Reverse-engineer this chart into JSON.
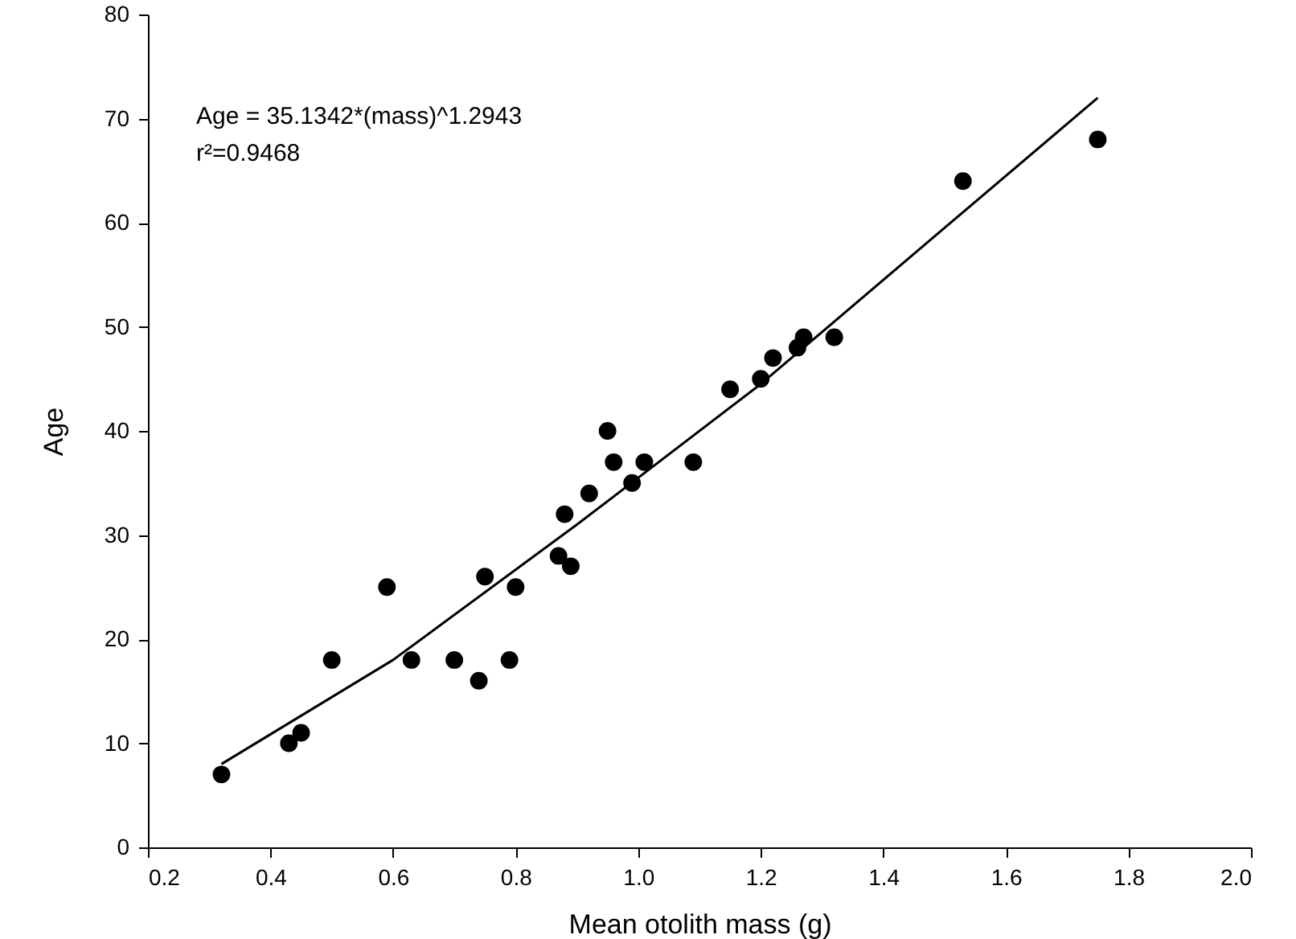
{
  "chart_data": {
    "type": "scatter",
    "xlabel": "Mean otolith mass (g)",
    "ylabel": "Age",
    "annotations": [
      "Age = 35.1342*(mass)^1.2943",
      "r²=0.9468"
    ],
    "xlim": [
      0.2,
      2.0
    ],
    "ylim": [
      0,
      80
    ],
    "xticks": [
      0.2,
      0.4,
      0.6,
      0.8,
      {
        "value": 1.0,
        "label": "1.0"
      },
      1.2,
      1.4,
      1.6,
      1.8,
      {
        "value": 2.0,
        "label": "2.0"
      }
    ],
    "yticks": [
      0,
      10,
      20,
      30,
      40,
      50,
      60,
      70,
      80
    ],
    "grid": false,
    "marker": "circle",
    "series": [
      {
        "color": "#000000",
        "x": [
          0.32,
          0.43,
          0.45,
          0.5,
          0.59,
          0.63,
          0.7,
          0.74,
          0.75,
          0.79,
          0.8,
          0.87,
          0.88,
          0.89,
          0.92,
          0.95,
          0.96,
          0.99,
          1.01,
          1.09,
          1.15,
          1.2,
          1.22,
          1.26,
          1.27,
          1.32,
          1.53,
          1.75
        ],
        "values": [
          7,
          10,
          11,
          18,
          25,
          18,
          18,
          16,
          26,
          18,
          25,
          28,
          32,
          27,
          34,
          40,
          37,
          35,
          37,
          37,
          44,
          45,
          47,
          48,
          49,
          49,
          64,
          68
        ]
      },
      {
        "type": "line",
        "color": "#000000",
        "line_style": "solid",
        "marker": "none",
        "x": [
          0.32,
          0.6,
          0.9,
          1.2,
          1.5,
          1.75
        ],
        "values": [
          8,
          18,
          31,
          44.5,
          59.5,
          72
        ]
      }
    ]
  }
}
